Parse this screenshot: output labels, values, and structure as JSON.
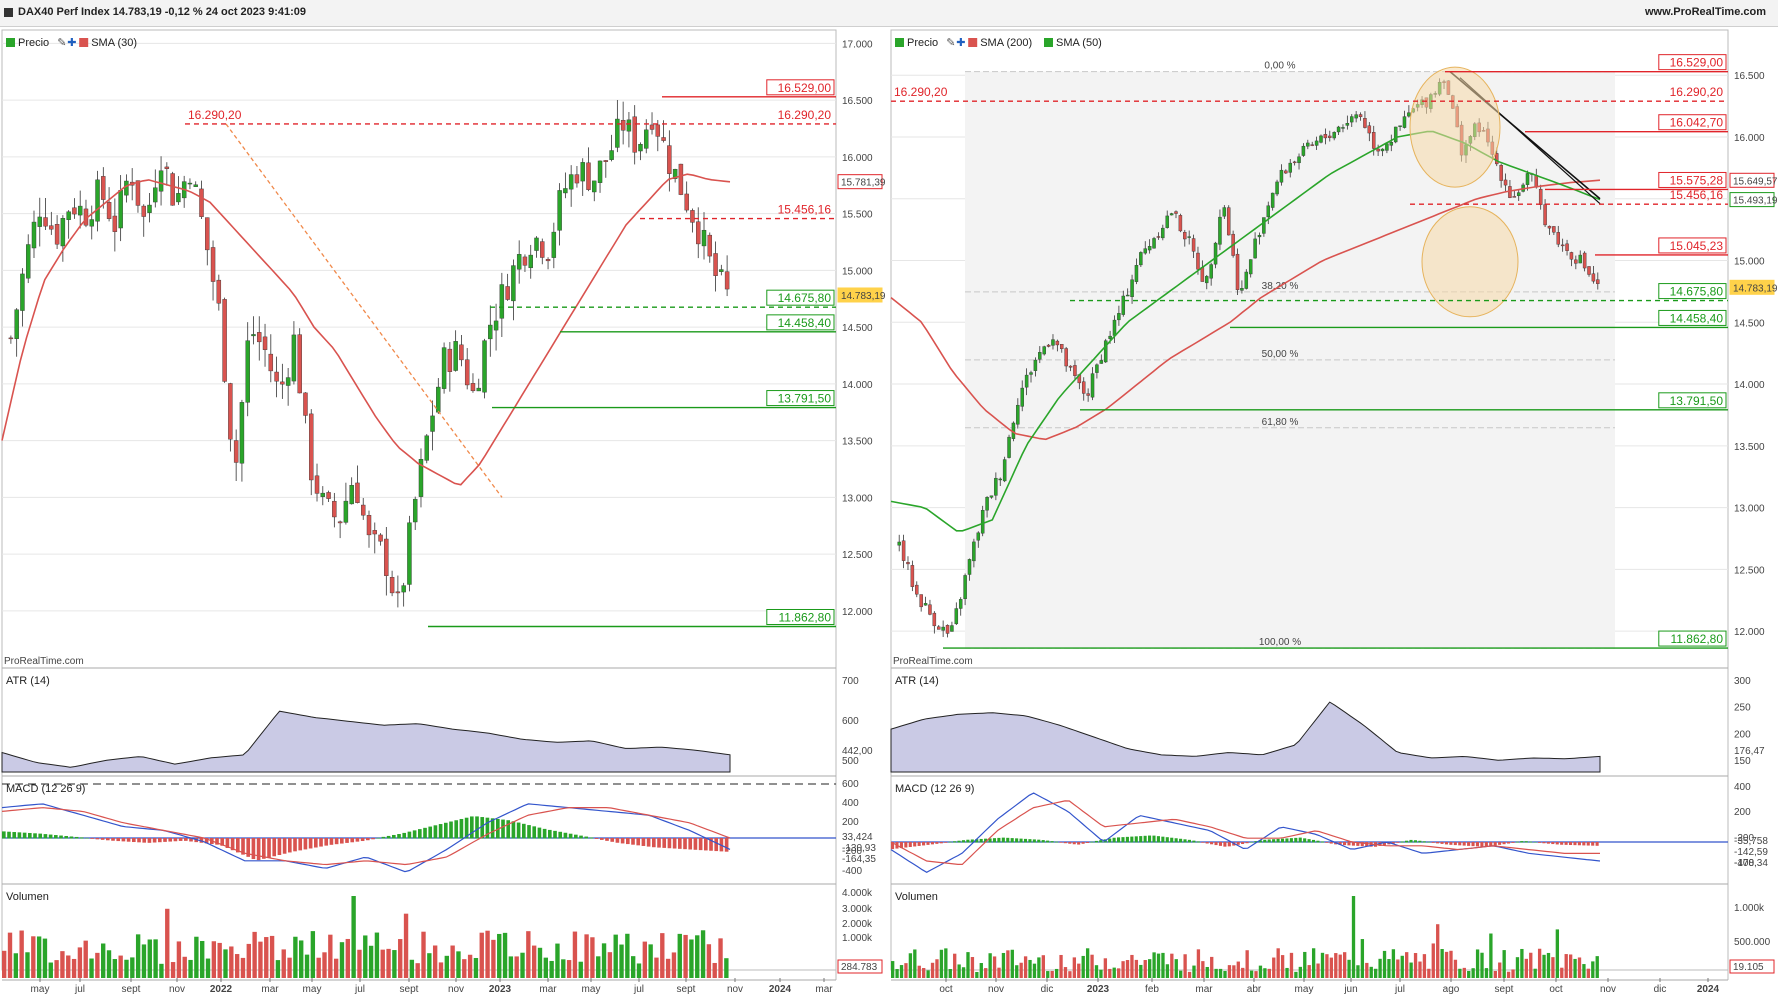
{
  "title": "DAX40 Perf Index 14.783,19 -0,12 % 24 oct 2023 9:41:09",
  "site": "www.ProRealTime.com",
  "watermark": "ProRealTime.com",
  "colors": {
    "red": "#e0242a",
    "green": "#1a9a1a",
    "sma_red": "#d9534f",
    "sma_green": "#2aa52a",
    "atr_fill": "#b8b8dc",
    "grid": "#e6e6e6"
  },
  "left": {
    "legend": [
      "Precio",
      "SMA (30)"
    ],
    "price_axis": [
      "17.000",
      "16.500",
      "16.000",
      "15.500",
      "15.000",
      "14.500",
      "14.000",
      "13.500",
      "13.000",
      "12.500",
      "12.000"
    ],
    "price_range": [
      11550,
      17100
    ],
    "x_labels": [
      "may",
      "jul",
      "sept",
      "nov",
      "2022",
      "mar",
      "may",
      "jul",
      "sept",
      "nov",
      "2023",
      "mar",
      "may",
      "jul",
      "sept",
      "nov",
      "2024",
      "mar"
    ],
    "levels": [
      {
        "value": 16529.0,
        "label": "16.529,00",
        "color": "red",
        "style": "solid"
      },
      {
        "value": 16290.2,
        "label": "16.290,20",
        "color": "red",
        "style": "dashed"
      },
      {
        "value": 15456.16,
        "label": "15.456,16",
        "color": "red",
        "style": "dashed"
      },
      {
        "value": 14675.8,
        "label": "14.675,80",
        "color": "green",
        "style": "dashed"
      },
      {
        "value": 14458.4,
        "label": "14.458,40",
        "color": "green",
        "style": "solid"
      },
      {
        "value": 13791.5,
        "label": "13.791,50",
        "color": "green",
        "style": "solid"
      },
      {
        "value": 11862.8,
        "label": "11.862,80",
        "color": "green",
        "style": "solid"
      }
    ],
    "sma_value": "15.781,39",
    "last_price": "14.783,19",
    "atr": {
      "label": "ATR (14)",
      "axis": [
        "700",
        "600",
        "500"
      ],
      "value": "442,00"
    },
    "macd": {
      "label": "MACD (12 26 9)",
      "axis": [
        "600",
        "400",
        "200",
        "-200",
        "-400"
      ],
      "values": [
        "33,424",
        "-130,93",
        "-164,35"
      ]
    },
    "volume": {
      "label": "Volumen",
      "axis": [
        "4.000k",
        "3.000k",
        "2.000k",
        "1.000k"
      ],
      "value": "284.783"
    }
  },
  "right": {
    "legend": [
      "Precio",
      "SMA (200)",
      "SMA (50)"
    ],
    "price_axis": [
      "16.500",
      "16.000",
      "15.500",
      "15.000",
      "14.500",
      "14.000",
      "13.500",
      "13.000",
      "12.500",
      "12.000"
    ],
    "price_range": [
      11750,
      16850
    ],
    "x_labels": [
      "oct",
      "nov",
      "dic",
      "2023",
      "feb",
      "mar",
      "abr",
      "may",
      "jun",
      "jul",
      "ago",
      "sept",
      "oct",
      "nov",
      "dic",
      "2024"
    ],
    "fib": [
      "0,00 %",
      "38,20 %",
      "50,00 %",
      "61,80 %",
      "100,00 %"
    ],
    "levels": [
      {
        "value": 16529.0,
        "label": "16.529,00",
        "color": "red",
        "style": "solid"
      },
      {
        "value": 16290.2,
        "label": "16.290,20",
        "color": "red",
        "style": "dashed"
      },
      {
        "value": 16042.7,
        "label": "16.042,70",
        "color": "red",
        "style": "solid"
      },
      {
        "value": 15575.28,
        "label": "15.575,28",
        "color": "red",
        "style": "solid"
      },
      {
        "value": 15456.16,
        "label": "15.456,16",
        "color": "red",
        "style": "dashed"
      },
      {
        "value": 15045.23,
        "label": "15.045,23",
        "color": "red",
        "style": "solid"
      },
      {
        "value": 14675.8,
        "label": "14.675,80",
        "color": "green",
        "style": "dashed"
      },
      {
        "value": 14458.4,
        "label": "14.458,40",
        "color": "green",
        "style": "solid"
      },
      {
        "value": 13791.5,
        "label": "13.791,50",
        "color": "green",
        "style": "solid"
      },
      {
        "value": 11862.8,
        "label": "11.862,80",
        "color": "green",
        "style": "solid"
      }
    ],
    "sma200_value": "15.649,57",
    "sma50_value": "15.493,19",
    "last_price": "14.783,19",
    "atr": {
      "label": "ATR (14)",
      "axis": [
        "300",
        "250",
        "200",
        "150"
      ],
      "value": "176,47"
    },
    "macd": {
      "label": "MACD (12 26 9)",
      "axis": [
        "400",
        "200",
        "-200",
        "-400"
      ],
      "values": [
        "-35,758",
        "-142,59",
        "-178,34"
      ]
    },
    "volume": {
      "label": "Volumen",
      "axis": [
        "1.000k",
        "500.000"
      ],
      "value": "19.105"
    }
  },
  "chart_data": [
    {
      "type": "line",
      "title": "",
      "series": [
        {
          "name": "Precio",
          "values": [
            14800,
            15200,
            15600,
            15500,
            15700,
            15800,
            15900,
            15700,
            16000,
            15500,
            16290,
            15900,
            14800,
            14400,
            13700,
            14500,
            14600,
            13900,
            14400,
            13100,
            13000,
            12500,
            12100,
            13700,
            14000,
            14100,
            14200,
            14800,
            15200,
            15400,
            15600,
            15300,
            15800,
            15900,
            16100,
            16400,
            16300,
            16500,
            16000,
            15700,
            15400,
            14900,
            14783
          ]
        },
        {
          "name": "SMA (30)",
          "values": [
            13300,
            14000,
            14700,
            15100,
            15400,
            15600,
            15800,
            15900,
            15900,
            15900,
            15850,
            15800,
            15500,
            15100,
            14700,
            14400,
            14200,
            14000,
            13800,
            13600,
            13400,
            13200,
            13050,
            13100,
            13300,
            13500,
            13900,
            14200,
            14600,
            14900,
            15200,
            15400,
            15600,
            15700,
            15800,
            15850,
            15900,
            15900,
            15850,
            15800,
            15781
          ]
        }
      ]
    },
    {
      "type": "line",
      "title": "",
      "series": [
        {
          "name": "Precio",
          "values": [
            12800,
            12200,
            12000,
            11900,
            12500,
            13000,
            13300,
            13900,
            14200,
            14400,
            14000,
            13800,
            14200,
            14600,
            15000,
            15200,
            15400,
            15100,
            14800,
            15500,
            14700,
            15200,
            15600,
            15800,
            15900,
            16000,
            16100,
            16200,
            15900,
            16000,
            16200,
            16300,
            16500,
            15900,
            16100,
            15800,
            15500,
            15700,
            15300,
            15100,
            15000,
            14783
          ]
        },
        {
          "name": "SMA (200)",
          "values": [
            14800,
            14500,
            14100,
            13700,
            13500,
            13450,
            13600,
            13700,
            13900,
            14100,
            14200,
            14400,
            14600,
            14750,
            14900,
            15000,
            15100,
            15200,
            15300,
            15400,
            15500,
            15560,
            15600,
            15640,
            15650
          ]
        },
        {
          "name": "SMA (50)",
          "values": [
            12900,
            12800,
            12700,
            13000,
            13600,
            13900,
            14200,
            14500,
            14700,
            14900,
            15100,
            15300,
            15500,
            15650,
            15850,
            16000,
            16050,
            15900,
            15800,
            15700,
            15600,
            15493
          ]
        }
      ]
    }
  ]
}
